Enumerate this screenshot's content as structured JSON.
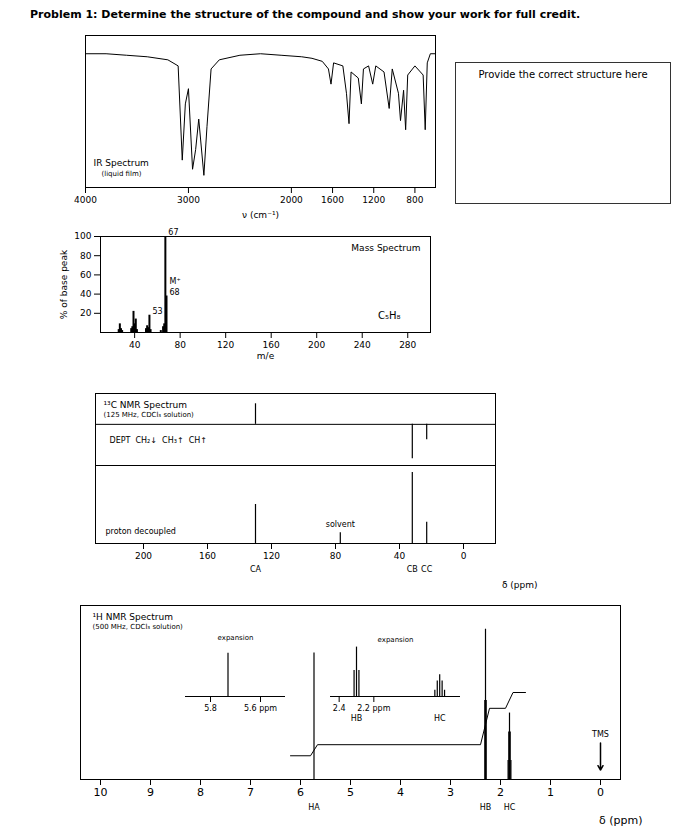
{
  "title": "Problem 1: Determine the structure of the compound and show your work for full credit.",
  "answer_box": "Provide the correct structure here",
  "chart_data": [
    {
      "type": "line",
      "title": "IR Spectrum",
      "subtitle": "(liquid film)",
      "x_label": "ν (cm⁻¹)",
      "xlim": [
        4000,
        600
      ],
      "xticks": [
        4000,
        3000,
        2000,
        1600,
        1200,
        800
      ],
      "ylim": [
        0,
        100
      ],
      "tick_labels": "x",
      "color": "#000000",
      "x": [
        4000,
        3800,
        3600,
        3400,
        3200,
        3100,
        3060,
        3030,
        3000,
        2960,
        2930,
        2900,
        2850,
        2820,
        2780,
        2700,
        2500,
        2300,
        2100,
        1900,
        1800,
        1700,
        1640,
        1615,
        1590,
        1500,
        1465,
        1440,
        1420,
        1350,
        1320,
        1300,
        1250,
        1210,
        1180,
        1100,
        1050,
        1020,
        960,
        940,
        910,
        890,
        870,
        800,
        720,
        700,
        680,
        650,
        600
      ],
      "values": [
        88,
        88,
        87,
        86,
        84,
        80,
        18,
        55,
        65,
        12,
        25,
        45,
        8,
        40,
        78,
        84,
        87,
        88,
        87,
        86,
        85,
        83,
        78,
        68,
        82,
        80,
        62,
        42,
        76,
        72,
        55,
        78,
        80,
        68,
        80,
        76,
        52,
        78,
        62,
        44,
        64,
        38,
        74,
        80,
        74,
        38,
        82,
        88,
        88
      ]
    },
    {
      "type": "bar",
      "title": "Mass Spectrum",
      "subtitle": "C₅H₈",
      "x_label": "m/e",
      "y_label": "% of base peak",
      "xlim": [
        10,
        300
      ],
      "xticks": [
        40,
        80,
        120,
        160,
        200,
        240,
        280
      ],
      "ylim": [
        0,
        100
      ],
      "yticks": [
        20,
        40,
        60,
        80,
        100
      ],
      "color": "#000000",
      "x": [
        26,
        27,
        28,
        29,
        37,
        38,
        39,
        40,
        41,
        42,
        50,
        51,
        52,
        53,
        54,
        63,
        65,
        66,
        67,
        68
      ],
      "values": [
        3,
        9,
        4,
        2,
        4,
        6,
        22,
        9,
        14,
        3,
        4,
        7,
        5,
        18,
        3,
        2,
        6,
        9,
        100,
        38
      ],
      "peak_labels": [
        {
          "x": 67,
          "label": "67"
        },
        {
          "x": 53,
          "label": "53"
        },
        {
          "x": 68,
          "label": "68"
        },
        {
          "x": 68,
          "label": "M⁺"
        }
      ]
    },
    {
      "type": "stem",
      "title": "¹³C NMR Spectrum",
      "subtitle": "(125 MHz, CDCl₃ solution)",
      "x_label": "δ (ppm)",
      "xlim": [
        230,
        -20
      ],
      "xticks": [
        200,
        160,
        120,
        80,
        40,
        0
      ],
      "tick_labels": "x",
      "color": "#000000",
      "series": [
        {
          "name": "DEPT  CH₂↓  CH₃↑  CH↑",
          "x": [
            130,
            32,
            23
          ],
          "values": [
            0.6,
            -1.0,
            -0.45
          ],
          "ylim": [
            -1.2,
            0.9
          ]
        },
        {
          "name": "proton decoupled",
          "x": [
            130,
            77,
            32,
            23
          ],
          "values": [
            0.55,
            0.15,
            1.0,
            0.3
          ],
          "ylim": [
            0,
            1.1
          ]
        }
      ],
      "peak_labels": [
        {
          "x": 130,
          "label": "CA"
        },
        {
          "x": 32,
          "label": "CB"
        },
        {
          "x": 23,
          "label": "CC"
        }
      ],
      "annotations": [
        {
          "x": 77,
          "label": "solvent"
        }
      ]
    },
    {
      "type": "stem",
      "title": "¹H NMR Spectrum",
      "subtitle": "(500 MHz, CDCl₃ solution)",
      "x_label": "δ (ppm)",
      "xlim": [
        10.4,
        -0.4
      ],
      "xticks": [
        10,
        9,
        8,
        7,
        6,
        5,
        4,
        3,
        2,
        1,
        0
      ],
      "ylim": [
        0,
        1.1
      ],
      "tick_labels": "x",
      "color": "#000000",
      "x": [
        5.73,
        2.314,
        2.3,
        2.286,
        1.848,
        1.834,
        1.82,
        1.806,
        1.792
      ],
      "values": [
        0.8,
        0.5,
        0.95,
        0.5,
        0.12,
        0.3,
        0.42,
        0.3,
        0.12
      ],
      "integration": {
        "x": [
          6.2,
          5.8,
          5.66,
          2.4,
          2.22,
          1.9,
          1.75,
          1.5
        ],
        "values": [
          0.15,
          0.15,
          0.22,
          0.22,
          0.45,
          0.45,
          0.55,
          0.55
        ]
      },
      "peak_labels": [
        {
          "x": 5.73,
          "label": "HA"
        },
        {
          "x": 2.3,
          "label": "HB"
        },
        {
          "x": 1.82,
          "label": "HC"
        }
      ],
      "annotations": [
        {
          "x": 0,
          "label": "TMS"
        }
      ],
      "insets": [
        {
          "title": "expansion",
          "xlim": [
            5.9,
            5.5
          ],
          "xticks": [
            5.8,
            {
              "value": 5.6,
              "label": "5.6 ppm"
            }
          ],
          "ylim": [
            0,
            1.0
          ],
          "peak_labels": []
        },
        {
          "title": "expansion",
          "xlim": [
            2.45,
            1.7
          ],
          "xticks": [
            2.4,
            {
              "value": 2.2,
              "label": "2.2 ppm"
            }
          ],
          "ylim": [
            0,
            1.0
          ],
          "peak_labels": [
            {
              "x": 2.3,
              "label": "HB"
            },
            {
              "x": 1.82,
              "label": "HC"
            }
          ]
        }
      ]
    }
  ]
}
